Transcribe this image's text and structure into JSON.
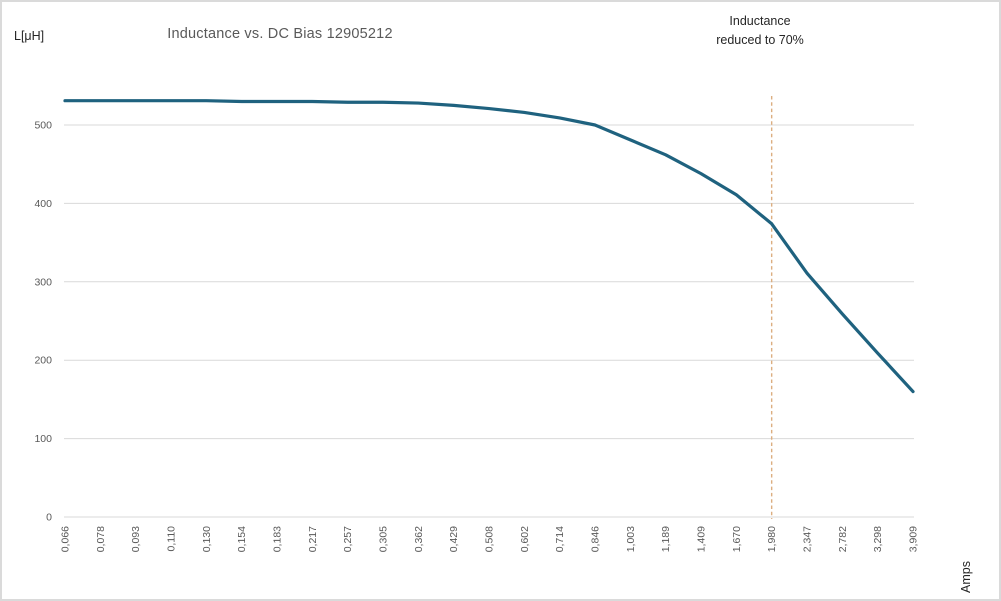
{
  "chart_data": {
    "type": "line",
    "title": "Inductance vs. DC Bias 12905212",
    "y_axis_label": "L[μH]",
    "x_axis_label": "Amps",
    "categories": [
      "0,066",
      "0,078",
      "0,093",
      "0,110",
      "0,130",
      "0,154",
      "0,183",
      "0,217",
      "0,257",
      "0,305",
      "0,362",
      "0,429",
      "0,508",
      "0,602",
      "0,714",
      "0,846",
      "1,003",
      "1,189",
      "1,409",
      "1,670",
      "1,980",
      "2,347",
      "2,782",
      "3,298",
      "3,909"
    ],
    "series": [
      {
        "name": "Inductance",
        "color": "#1f627f",
        "values": [
          531,
          531,
          531,
          531,
          531,
          530,
          530,
          530,
          529,
          529,
          528,
          525,
          521,
          516,
          509,
          500,
          481,
          462,
          438,
          411,
          374,
          311,
          259,
          209,
          160
        ]
      }
    ],
    "y_ticks": [
      0,
      100,
      200,
      300,
      400,
      500
    ],
    "ylim": [
      0,
      560
    ],
    "grid": true,
    "legend": "none",
    "annotation": {
      "text": "Inductance reduced to 70%",
      "marker_category": "1,980",
      "marker_index": 20,
      "line_color": "#dcae80",
      "line_style": "dashed"
    },
    "colors": {
      "grid": "#d9d9d9",
      "tick_label": "#595959",
      "title": "#595959",
      "text": "#262626",
      "background": "#ffffff",
      "border": "#dadada"
    }
  }
}
